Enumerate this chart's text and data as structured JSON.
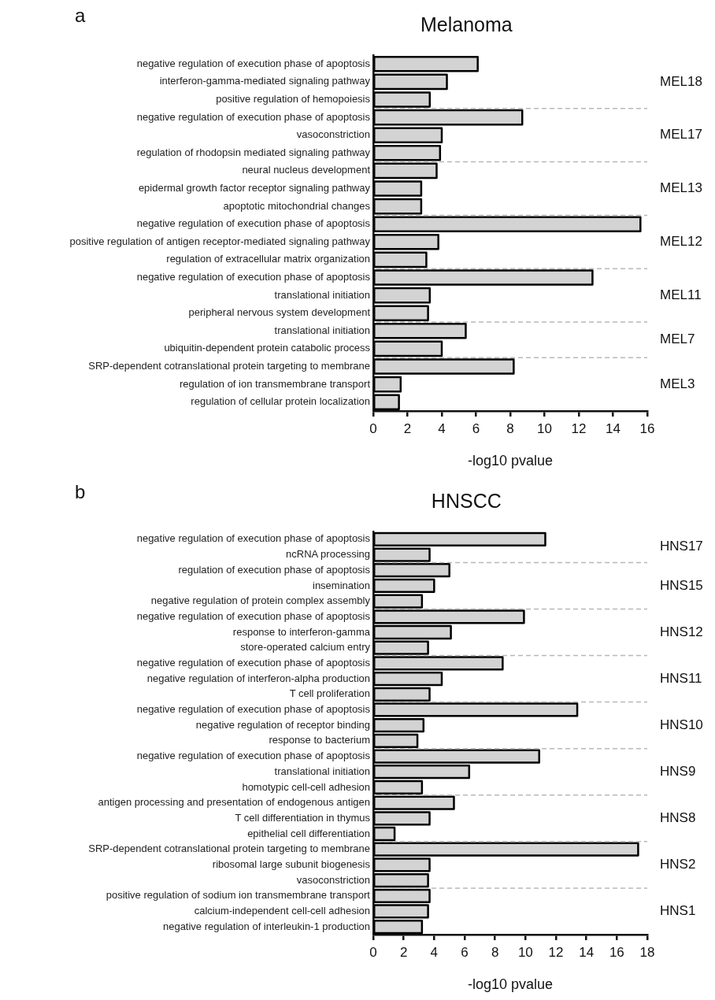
{
  "chart_data": [
    {
      "type": "bar",
      "orientation": "horizontal",
      "title": "Melanoma",
      "xlabel": "-log10 pvalue",
      "annotations": [
        "a"
      ],
      "grid": false,
      "legend": false,
      "xlim": [
        0,
        16
      ],
      "xticks": [
        0,
        2,
        4,
        6,
        8,
        10,
        12,
        14,
        16
      ],
      "categories": [
        "negative regulation of execution phase of apoptosis",
        "interferon-gamma-mediated signaling pathway",
        "positive regulation of hemopoiesis",
        "negative regulation of execution phase of apoptosis",
        "vasoconstriction",
        "regulation of rhodopsin mediated signaling pathway",
        "neural nucleus development",
        "epidermal growth factor receptor signaling pathway",
        "apoptotic mitochondrial changes",
        "negative regulation of execution phase of apoptosis",
        "positive regulation of antigen receptor-mediated signaling pathway",
        "regulation of extracellular matrix organization",
        "negative regulation of execution phase of apoptosis",
        "translational initiation",
        "peripheral nervous system development",
        "translational initiation",
        "ubiquitin-dependent protein catabolic process",
        "SRP-dependent cotranslational protein targeting to membrane",
        "regulation of ion transmembrane transport",
        "regulation of cellular protein localization"
      ],
      "series": [
        {
          "name": "MEL18",
          "color": "#d3d3d3",
          "values": [
            6.1,
            4.3,
            3.3,
            null,
            null,
            null,
            null,
            null,
            null,
            null,
            null,
            null,
            null,
            null,
            null,
            null,
            null,
            null,
            null,
            null
          ]
        },
        {
          "name": "MEL17",
          "color": "#d3d3d3",
          "values": [
            null,
            null,
            null,
            8.7,
            4.0,
            3.9,
            null,
            null,
            null,
            null,
            null,
            null,
            null,
            null,
            null,
            null,
            null,
            null,
            null,
            null
          ]
        },
        {
          "name": "MEL13",
          "color": "#d3d3d3",
          "values": [
            null,
            null,
            null,
            null,
            null,
            null,
            3.7,
            2.8,
            2.8,
            null,
            null,
            null,
            null,
            null,
            null,
            null,
            null,
            null,
            null,
            null
          ]
        },
        {
          "name": "MEL12",
          "color": "#d3d3d3",
          "values": [
            null,
            null,
            null,
            null,
            null,
            null,
            null,
            null,
            null,
            15.6,
            3.8,
            3.1,
            null,
            null,
            null,
            null,
            null,
            null,
            null,
            null
          ]
        },
        {
          "name": "MEL11",
          "color": "#d3d3d3",
          "values": [
            null,
            null,
            null,
            null,
            null,
            null,
            null,
            null,
            null,
            null,
            null,
            null,
            12.8,
            3.3,
            3.2,
            null,
            null,
            null,
            null,
            null
          ]
        },
        {
          "name": "MEL7",
          "color": "#d3d3d3",
          "values": [
            null,
            null,
            null,
            null,
            null,
            null,
            null,
            null,
            null,
            null,
            null,
            null,
            null,
            null,
            null,
            5.4,
            4.0,
            null,
            null,
            null
          ]
        },
        {
          "name": "MEL3",
          "color": "#d3d3d3",
          "values": [
            null,
            null,
            null,
            null,
            null,
            null,
            null,
            null,
            null,
            null,
            null,
            null,
            null,
            null,
            null,
            null,
            null,
            8.2,
            1.6,
            1.5
          ]
        }
      ]
    },
    {
      "type": "bar",
      "orientation": "horizontal",
      "title": "HNSCC",
      "xlabel": "-log10 pvalue",
      "annotations": [
        "b"
      ],
      "grid": false,
      "legend": false,
      "xlim": [
        0,
        18
      ],
      "xticks": [
        0,
        2,
        4,
        6,
        8,
        10,
        12,
        14,
        16,
        18
      ],
      "categories": [
        "negative regulation of execution phase of apoptosis",
        "ncRNA processing",
        "regulation of execution phase of apoptosis",
        "insemination",
        "negative regulation of protein complex assembly",
        "negative regulation of execution phase of apoptosis",
        "response to interferon-gamma",
        "store-operated calcium entry",
        "negative regulation of execution phase of apoptosis",
        "negative regulation of interferon-alpha production",
        "T cell proliferation",
        "negative regulation of execution phase of apoptosis",
        "negative regulation of receptor binding",
        "response to bacterium",
        "negative regulation of execution phase of apoptosis",
        "translational initiation",
        "homotypic cell-cell adhesion",
        "antigen processing and presentation of endogenous antigen",
        "T cell differentiation in thymus",
        "epithelial cell differentiation",
        "SRP-dependent cotranslational protein targeting to membrane",
        "ribosomal large subunit biogenesis",
        "vasoconstriction",
        "positive regulation of sodium ion transmembrane transport",
        "calcium-independent cell-cell adhesion",
        "negative regulation of interleukin-1 production"
      ],
      "series": [
        {
          "name": "HNS17",
          "color": "#d3d3d3",
          "values": [
            11.3,
            3.7,
            null,
            null,
            null,
            null,
            null,
            null,
            null,
            null,
            null,
            null,
            null,
            null,
            null,
            null,
            null,
            null,
            null,
            null,
            null,
            null,
            null,
            null,
            null,
            null
          ]
        },
        {
          "name": "HNS15",
          "color": "#d3d3d3",
          "values": [
            null,
            null,
            5.0,
            4.0,
            3.2,
            null,
            null,
            null,
            null,
            null,
            null,
            null,
            null,
            null,
            null,
            null,
            null,
            null,
            null,
            null,
            null,
            null,
            null,
            null,
            null,
            null
          ]
        },
        {
          "name": "HNS12",
          "color": "#d3d3d3",
          "values": [
            null,
            null,
            null,
            null,
            null,
            9.9,
            5.1,
            3.6,
            null,
            null,
            null,
            null,
            null,
            null,
            null,
            null,
            null,
            null,
            null,
            null,
            null,
            null,
            null,
            null,
            null,
            null
          ]
        },
        {
          "name": "HNS11",
          "color": "#d3d3d3",
          "values": [
            null,
            null,
            null,
            null,
            null,
            null,
            null,
            null,
            8.5,
            4.5,
            3.7,
            null,
            null,
            null,
            null,
            null,
            null,
            null,
            null,
            null,
            null,
            null,
            null,
            null,
            null,
            null
          ]
        },
        {
          "name": "HNS10",
          "color": "#d3d3d3",
          "values": [
            null,
            null,
            null,
            null,
            null,
            null,
            null,
            null,
            null,
            null,
            null,
            13.4,
            3.3,
            2.9,
            null,
            null,
            null,
            null,
            null,
            null,
            null,
            null,
            null,
            null,
            null,
            null
          ]
        },
        {
          "name": "HNS9",
          "color": "#d3d3d3",
          "values": [
            null,
            null,
            null,
            null,
            null,
            null,
            null,
            null,
            null,
            null,
            null,
            null,
            null,
            null,
            10.9,
            6.3,
            3.2,
            null,
            null,
            null,
            null,
            null,
            null,
            null,
            null,
            null
          ]
        },
        {
          "name": "HNS8",
          "color": "#d3d3d3",
          "values": [
            null,
            null,
            null,
            null,
            null,
            null,
            null,
            null,
            null,
            null,
            null,
            null,
            null,
            null,
            null,
            null,
            null,
            5.3,
            3.7,
            1.4,
            null,
            null,
            null,
            null,
            null,
            null
          ]
        },
        {
          "name": "HNS2",
          "color": "#d3d3d3",
          "values": [
            null,
            null,
            null,
            null,
            null,
            null,
            null,
            null,
            null,
            null,
            null,
            null,
            null,
            null,
            null,
            null,
            null,
            null,
            null,
            null,
            17.4,
            3.7,
            3.6,
            null,
            null,
            null
          ]
        },
        {
          "name": "HNS1",
          "color": "#d3d3d3",
          "values": [
            null,
            null,
            null,
            null,
            null,
            null,
            null,
            null,
            null,
            null,
            null,
            null,
            null,
            null,
            null,
            null,
            null,
            null,
            null,
            null,
            null,
            null,
            null,
            3.7,
            3.6,
            3.2
          ]
        }
      ]
    }
  ]
}
